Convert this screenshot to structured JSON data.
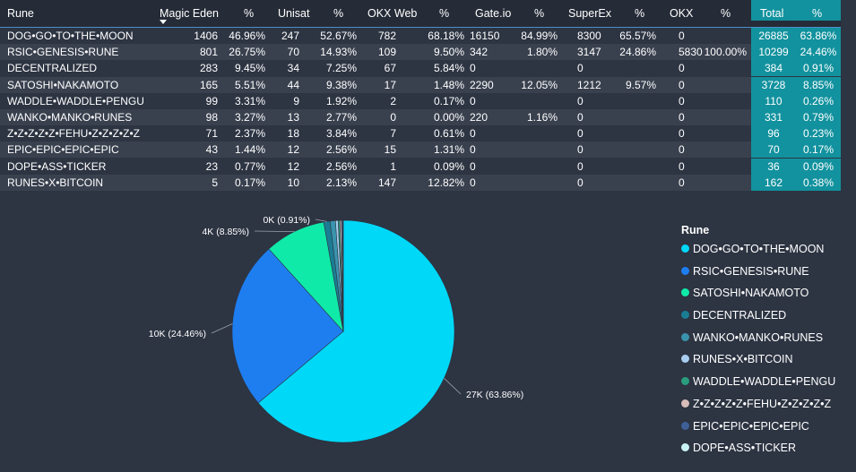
{
  "table": {
    "headers": [
      "Rune",
      "Magic Eden",
      "%",
      "Unisat",
      "%",
      "OKX Web",
      "%",
      "Gate.io",
      "%",
      "SuperEx",
      "%",
      "OKX",
      "%",
      "Total",
      "%"
    ],
    "rows": [
      [
        "DOG•GO•TO•THE•MOON",
        "1406",
        "46.96%",
        "247",
        "52.67%",
        "782",
        "68.18%",
        "16150",
        "84.99%",
        "8300",
        "65.57%",
        "0",
        "",
        "26885",
        "63.86%"
      ],
      [
        "RSIC•GENESIS•RUNE",
        "801",
        "26.75%",
        "70",
        "14.93%",
        "109",
        "9.50%",
        "342",
        "1.80%",
        "3147",
        "24.86%",
        "5830",
        "100.00%",
        "10299",
        "24.46%"
      ],
      [
        "DECENTRALIZED",
        "283",
        "9.45%",
        "34",
        "7.25%",
        "67",
        "5.84%",
        "0",
        "",
        "0",
        "",
        "0",
        "",
        "384",
        "0.91%"
      ],
      [
        "SATOSHI•NAKAMOTO",
        "165",
        "5.51%",
        "44",
        "9.38%",
        "17",
        "1.48%",
        "2290",
        "12.05%",
        "1212",
        "9.57%",
        "0",
        "",
        "3728",
        "8.85%"
      ],
      [
        "WADDLE•WADDLE•PENGU",
        "99",
        "3.31%",
        "9",
        "1.92%",
        "2",
        "0.17%",
        "0",
        "",
        "0",
        "",
        "0",
        "",
        "110",
        "0.26%"
      ],
      [
        "WANKO•MANKO•RUNES",
        "98",
        "3.27%",
        "13",
        "2.77%",
        "0",
        "0.00%",
        "220",
        "1.16%",
        "0",
        "",
        "0",
        "",
        "331",
        "0.79%"
      ],
      [
        "Z•Z•Z•Z•Z•FEHU•Z•Z•Z•Z•Z",
        "71",
        "2.37%",
        "18",
        "3.84%",
        "7",
        "0.61%",
        "0",
        "",
        "0",
        "",
        "0",
        "",
        "96",
        "0.23%"
      ],
      [
        "EPIC•EPIC•EPIC•EPIC",
        "43",
        "1.44%",
        "12",
        "2.56%",
        "15",
        "1.31%",
        "0",
        "",
        "0",
        "",
        "0",
        "",
        "70",
        "0.17%"
      ],
      [
        "DOPE•ASS•TICKER",
        "23",
        "0.77%",
        "12",
        "2.56%",
        "1",
        "0.09%",
        "0",
        "",
        "0",
        "",
        "0",
        "",
        "36",
        "0.09%"
      ],
      [
        "RUNES•X•BITCOIN",
        "5",
        "0.17%",
        "10",
        "2.13%",
        "147",
        "12.82%",
        "0",
        "",
        "0",
        "",
        "0",
        "",
        "162",
        "0.38%"
      ]
    ]
  },
  "chart_data": {
    "type": "pie",
    "slices": [
      {
        "name": "DOG•GO•TO•THE•MOON",
        "value": 26885,
        "label": "27K (63.86%)",
        "color": "#00d8f8"
      },
      {
        "name": "RSIC•GENESIS•RUNE",
        "value": 10299,
        "label": "10K (24.46%)",
        "color": "#1e7ef0"
      },
      {
        "name": "SATOSHI•NAKAMOTO",
        "value": 3728,
        "label": "4K (8.85%)",
        "color": "#10eaa8"
      },
      {
        "name": "DECENTRALIZED",
        "value": 384,
        "label": "0K (0.91%)",
        "color": "#1a7d94"
      },
      {
        "name": "WANKO•MANKO•RUNES",
        "value": 331,
        "label": "",
        "color": "#3a93ad"
      },
      {
        "name": "RUNES•X•BITCOIN",
        "value": 162,
        "label": "",
        "color": "#a8cdf0"
      },
      {
        "name": "WADDLE•WADDLE•PENGU",
        "value": 110,
        "label": "",
        "color": "#2a9d7e"
      },
      {
        "name": "Z•Z•Z•Z•Z•FEHU•Z•Z•Z•Z•Z",
        "value": 96,
        "label": "",
        "color": "#d8bcb8"
      },
      {
        "name": "EPIC•EPIC•EPIC•EPIC",
        "value": 70,
        "label": "",
        "color": "#3e6096"
      },
      {
        "name": "DOPE•ASS•TICKER",
        "value": 36,
        "label": "",
        "color": "#c8f2f4"
      }
    ]
  },
  "legend": {
    "title": "Rune",
    "items": [
      {
        "label": "DOG•GO•TO•THE•MOON",
        "color": "#00d8f8"
      },
      {
        "label": "RSIC•GENESIS•RUNE",
        "color": "#1e7ef0"
      },
      {
        "label": "SATOSHI•NAKAMOTO",
        "color": "#10eaa8"
      },
      {
        "label": "DECENTRALIZED",
        "color": "#1a7d94"
      },
      {
        "label": "WANKO•MANKO•RUNES",
        "color": "#3a93ad"
      },
      {
        "label": "RUNES•X•BITCOIN",
        "color": "#a8cdf0"
      },
      {
        "label": "WADDLE•WADDLE•PENGU",
        "color": "#2a9d7e"
      },
      {
        "label": "Z•Z•Z•Z•Z•FEHU•Z•Z•Z•Z•Z",
        "color": "#d8bcb8"
      },
      {
        "label": "EPIC•EPIC•EPIC•EPIC",
        "color": "#3e6096"
      },
      {
        "label": "DOPE•ASS•TICKER",
        "color": "#c8f2f4"
      }
    ]
  }
}
